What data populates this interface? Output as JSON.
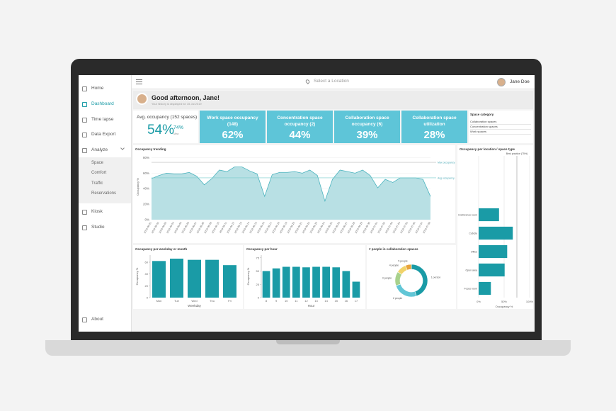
{
  "sidebar": {
    "items": [
      "Home",
      "Dashboard",
      "Time lapse",
      "Data Export",
      "Analyze"
    ],
    "subitems": [
      "Space",
      "Comfort",
      "Traffic",
      "Reservations"
    ],
    "items2": [
      "Kiosk",
      "Studio"
    ],
    "footer": "About"
  },
  "topbar": {
    "location_placeholder": "Select a Location",
    "user": "Jane Doe"
  },
  "greeting": {
    "title": "Good afternoon, Jane!",
    "subtitle": "Your history is displayed for 15 Jul 2019"
  },
  "summary": {
    "label": "Avg. occupancy (152 spaces)",
    "value": "54%",
    "peak": "74%",
    "peak_caption": "Max"
  },
  "kpis": [
    {
      "label": "Work space occupancy (148)",
      "value": "62%"
    },
    {
      "label": "Concentration space occupancy (2)",
      "value": "44%"
    },
    {
      "label": "Collaboration space occupancy (6)",
      "value": "39%"
    },
    {
      "label": "Collaboration space utilization",
      "value": "28%"
    }
  ],
  "space_category": {
    "title": "Space category",
    "options": [
      "Collaboration spaces",
      "Concentration spaces",
      "Work spaces"
    ]
  },
  "chart_data": [
    {
      "type": "area",
      "title": "Occupancy trending",
      "ylabel": "Occupancy %",
      "color": "#4bb3be",
      "fill": "#b8e0e4",
      "categories": [
        "2019-06-01",
        "2019-06-02",
        "2019-06-03",
        "2019-06-04",
        "2019-06-05",
        "2019-06-06",
        "2019-06-07",
        "2019-06-08",
        "2019-06-09",
        "2019-06-10",
        "2019-06-11",
        "2019-06-12",
        "2019-06-13",
        "2019-06-14",
        "2019-06-15",
        "2019-06-16",
        "2019-06-17",
        "2019-06-18",
        "2019-06-19",
        "2019-06-20",
        "2019-06-21",
        "2019-06-22",
        "2019-06-23",
        "2019-06-24",
        "2019-06-25",
        "2019-06-26",
        "2019-06-27",
        "2019-06-28",
        "2019-06-29",
        "2019-06-30",
        "2019-07-01",
        "2019-07-02",
        "2019-07-03",
        "2019-07-04",
        "2019-07-05",
        "2019-07-06",
        "2019-07-07",
        "2019-07-08"
      ],
      "values": [
        53,
        57,
        60,
        59,
        59,
        61,
        56,
        45,
        53,
        64,
        62,
        68,
        68,
        63,
        59,
        30,
        58,
        61,
        61,
        62,
        60,
        64,
        57,
        24,
        52,
        64,
        62,
        60,
        64,
        57,
        41,
        52,
        48,
        54,
        54,
        54,
        52,
        30
      ],
      "ylim": [
        0,
        85
      ],
      "yticks": [
        {
          "value": 0,
          "label": "0%"
        },
        {
          "value": 20,
          "label": "20%"
        },
        {
          "value": 40,
          "label": "40%"
        },
        {
          "value": 60,
          "label": "60%"
        },
        {
          "value": 80,
          "label": "80%"
        }
      ],
      "reference_lines": [
        {
          "value": 74,
          "label": "Max occupancy (74%)"
        },
        {
          "value": 54,
          "label": "Avg occupancy (54%)"
        }
      ]
    },
    {
      "type": "bar",
      "title": "Occupancy per weekday or month",
      "ylabel": "Occupancy %",
      "xlabel": "Weekday",
      "color": "#1a9ba6",
      "categories": [
        "Mon",
        "Tue",
        "Wed",
        "Thu",
        "Fri"
      ],
      "values": [
        62,
        66,
        64,
        64,
        55
      ],
      "ylim": [
        0,
        72
      ],
      "yticks": [
        0,
        20,
        40,
        60
      ]
    },
    {
      "type": "bar",
      "title": "Occupancy per hour",
      "ylabel": "Occupancy %",
      "xlabel": "Hour",
      "color": "#1a9ba6",
      "categories": [
        "8",
        "9",
        "10",
        "11",
        "12",
        "13",
        "14",
        "15",
        "16",
        "17"
      ],
      "values": [
        50,
        55,
        58,
        58,
        57,
        58,
        58,
        57,
        50,
        30
      ],
      "ylim": [
        0,
        80
      ],
      "yticks": [
        0,
        25,
        50,
        75
      ]
    },
    {
      "type": "pie",
      "title": "# people in collaboration spaces",
      "categories": [
        "1 person",
        "2 people",
        "3 people",
        "4 people",
        "5 people"
      ],
      "values": [
        45,
        25,
        14,
        10,
        6
      ],
      "colors": [
        "#1a9ba6",
        "#62c6d6",
        "#a8d18c",
        "#f1d36a",
        "#e8a33b"
      ]
    },
    {
      "type": "bar",
      "orientation": "horizontal",
      "title": "Occupancy per location / space type",
      "xlabel": "Occupancy %",
      "color": "#1a9ba6",
      "categories": [
        "Conference room",
        "Cubicle",
        "Office",
        "Open area",
        "Focus room"
      ],
      "values": [
        40,
        67,
        56,
        51,
        24
      ],
      "xlim": [
        0,
        100
      ],
      "xticks": [
        {
          "value": 0,
          "label": "0%"
        },
        {
          "value": 50,
          "label": "50%"
        },
        {
          "value": 100,
          "label": "100%"
        }
      ],
      "reference_lines": [
        {
          "value": 75,
          "label": "Best practice (75%)"
        }
      ]
    }
  ]
}
